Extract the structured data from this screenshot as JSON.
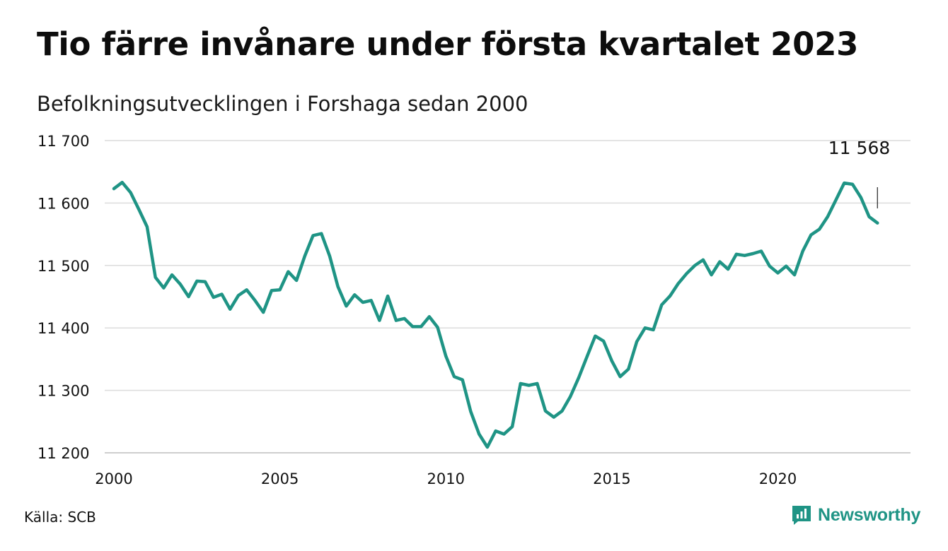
{
  "header": {
    "title": "Tio färre invånare under första kvartalet 2023",
    "subtitle": "Befolkningsutvecklingen i Forshaga sedan 2000"
  },
  "footer": {
    "source": "Källa: SCB",
    "brand": "Newsworthy",
    "brand_icon": "newsworthy-logo-icon",
    "brand_color": "#1f9485"
  },
  "chart_data": {
    "type": "line",
    "title": "Tio färre invånare under första kvartalet 2023",
    "subtitle": "Befolkningsutvecklingen i Forshaga sedan 2000",
    "xlabel": "",
    "ylabel": "",
    "x_ticks": [
      2000,
      2005,
      2010,
      2015,
      2020
    ],
    "y_ticks": [
      11200,
      11300,
      11400,
      11500,
      11600,
      11700
    ],
    "y_tick_labels": [
      "11 200",
      "11 300",
      "11 400",
      "11 500",
      "11 600",
      "11 700"
    ],
    "xlim": [
      2000,
      2023.25
    ],
    "ylim": [
      11200,
      11700
    ],
    "grid": "horizontal",
    "line_color": "#1f9485",
    "annotation": {
      "text": "11 568",
      "x": 2023.0
    },
    "series": [
      {
        "frequency": "quarterly",
        "start": "2000-Q1",
        "values": [
          11623,
          11633,
          11617,
          11590,
          11562,
          11481,
          11464,
          11485,
          11470,
          11450,
          11475,
          11474,
          11449,
          11454,
          11430,
          11452,
          11461,
          11444,
          11425,
          11460,
          11461,
          11490,
          11476,
          11515,
          11548,
          11551,
          11515,
          11466,
          11435,
          11453,
          11441,
          11444,
          11412,
          11451,
          11412,
          11415,
          11402,
          11402,
          11418,
          11401,
          11355,
          11322,
          11317,
          11266,
          11230,
          11209,
          11235,
          11230,
          11242,
          11311,
          11308,
          11311,
          11267,
          11257,
          11267,
          11290,
          11320,
          11354,
          11387,
          11379,
          11347,
          11322,
          11334,
          11378,
          11400,
          11397,
          11437,
          11451,
          11471,
          11487,
          11500,
          11509,
          11485,
          11506,
          11494,
          11518,
          11516,
          11519,
          11523,
          11499,
          11488,
          11499,
          11485,
          11523,
          11549,
          11558,
          11578,
          11605,
          11632,
          11630,
          11609,
          11578,
          11568
        ]
      }
    ]
  }
}
